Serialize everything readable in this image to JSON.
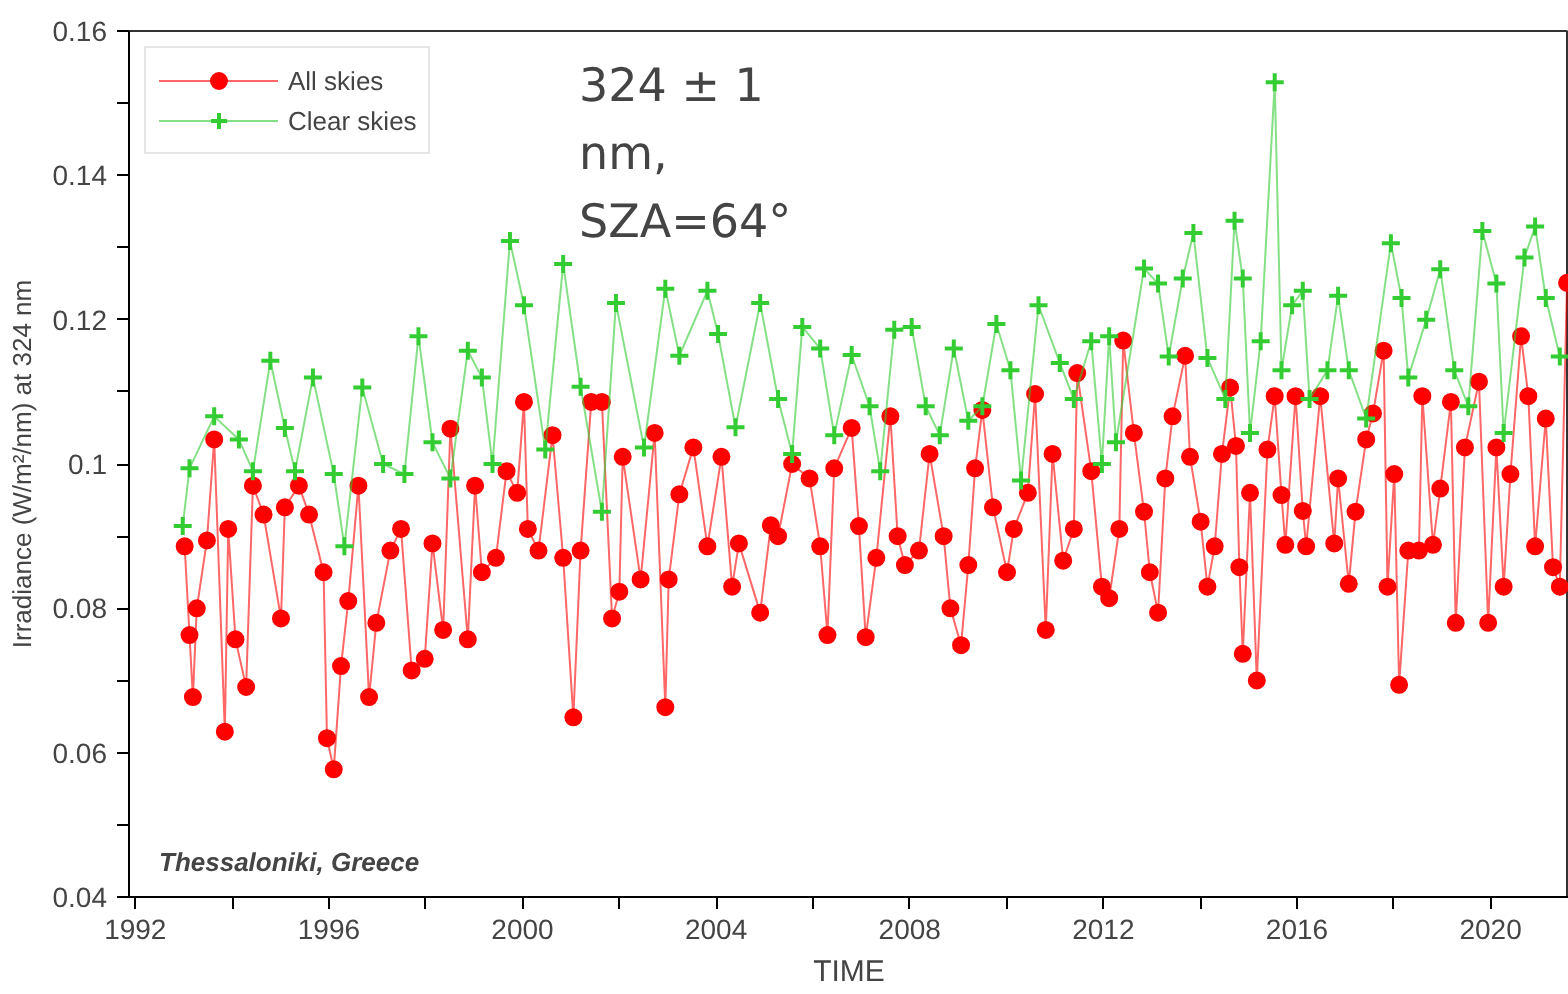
{
  "chart_data": {
    "type": "line",
    "xlabel": "TIME",
    "ylabel": "Irradiance (W/m²/nm) at 324 nm",
    "xlim": [
      1991.87,
      2021.62
    ],
    "ylim": [
      0.04,
      0.16
    ],
    "xticks": [
      1992,
      {
        "value": 1994,
        "label": null
      },
      1996,
      {
        "value": 1998,
        "label": null
      },
      2000,
      {
        "value": 2002,
        "label": null
      },
      2004,
      {
        "value": 2006,
        "label": null
      },
      2008,
      {
        "value": 2010,
        "label": null
      },
      2012,
      {
        "value": 2014,
        "label": null
      },
      2016,
      {
        "value": 2018,
        "label": null
      },
      2020
    ],
    "yticks": [
      0.04,
      {
        "value": 0.05,
        "label": null
      },
      0.06,
      {
        "value": 0.07,
        "label": null
      },
      0.08,
      {
        "value": 0.09,
        "label": null
      },
      0.1,
      {
        "value": 0.11,
        "label": null
      },
      0.12,
      {
        "value": 0.13,
        "label": null
      },
      0.14,
      {
        "value": 0.15,
        "label": null
      },
      0.16
    ],
    "grid": false,
    "legend": "top left",
    "line_style": "solid",
    "annotations": [
      "324 ± 1\nnm,\nSZA=64°",
      "Thessaloniki, Greece"
    ],
    "series": [
      {
        "name": "All skies",
        "color": "#ff0000",
        "marker": "circle",
        "x": [
          1993.02,
          1993.12,
          1993.19,
          1993.27,
          1993.48,
          1993.63,
          1993.85,
          1993.92,
          1994.07,
          1994.29,
          1994.43,
          1994.65,
          1995.01,
          1995.09,
          1995.38,
          1995.59,
          1995.89,
          1995.96,
          1996.1,
          1996.25,
          1996.4,
          1996.61,
          1996.83,
          1996.98,
          1997.27,
          1997.49,
          1997.71,
          1997.98,
          1998.14,
          1998.36,
          1998.51,
          1998.87,
          1999.02,
          1999.16,
          1999.45,
          1999.67,
          1999.89,
          2000.03,
          2000.11,
          2000.33,
          2000.62,
          2000.84,
          2001.05,
          2001.2,
          2001.42,
          2001.64,
          2001.85,
          2002.0,
          2002.07,
          2002.44,
          2002.73,
          2002.95,
          2003.02,
          2003.24,
          2003.53,
          2003.82,
          2004.11,
          2004.33,
          2004.47,
          2004.91,
          2005.13,
          2005.28,
          2005.57,
          2005.93,
          2006.15,
          2006.3,
          2006.44,
          2006.8,
          2006.95,
          2007.09,
          2007.31,
          2007.6,
          2007.75,
          2007.9,
          2008.19,
          2008.41,
          2008.7,
          2008.84,
          2009.06,
          2009.21,
          2009.35,
          2009.5,
          2009.72,
          2010.01,
          2010.15,
          2010.44,
          2010.59,
          2010.81,
          2010.95,
          2011.17,
          2011.39,
          2011.46,
          2011.75,
          2011.97,
          2012.12,
          2012.33,
          2012.41,
          2012.63,
          2012.84,
          2012.96,
          2013.13,
          2013.28,
          2013.43,
          2013.69,
          2013.79,
          2014.01,
          2014.15,
          2014.3,
          2014.45,
          2014.62,
          2014.74,
          2014.81,
          2014.88,
          2015.03,
          2015.17,
          2015.39,
          2015.54,
          2015.68,
          2015.76,
          2015.97,
          2016.12,
          2016.19,
          2016.48,
          2016.77,
          2016.85,
          2017.07,
          2017.21,
          2017.43,
          2017.57,
          2017.79,
          2017.87,
          2018.01,
          2018.11,
          2018.3,
          2018.52,
          2018.59,
          2018.81,
          2018.96,
          2019.18,
          2019.28,
          2019.47,
          2019.76,
          2019.95,
          2020.12,
          2020.27,
          2020.41,
          2020.63,
          2020.78,
          2020.92,
          2021.14,
          2021.29,
          2021.43,
          2021.58
        ],
        "values": [
          0.0886,
          0.0763,
          0.0677,
          0.08,
          0.0894,
          0.1034,
          0.0629,
          0.091,
          0.0757,
          0.0691,
          0.097,
          0.093,
          0.0786,
          0.094,
          0.097,
          0.093,
          0.085,
          0.062,
          0.0577,
          0.072,
          0.081,
          0.097,
          0.0677,
          0.078,
          0.088,
          0.091,
          0.0714,
          0.073,
          0.089,
          0.077,
          0.1049,
          0.0757,
          0.097,
          0.085,
          0.087,
          0.099,
          0.096,
          0.1086,
          0.091,
          0.088,
          0.104,
          0.087,
          0.0649,
          0.088,
          0.1086,
          0.1086,
          0.0786,
          0.0823,
          0.101,
          0.084,
          0.1043,
          0.0663,
          0.084,
          0.0958,
          0.1023,
          0.0886,
          0.101,
          0.083,
          0.089,
          0.0794,
          0.0915,
          0.09,
          0.1,
          0.098,
          0.0886,
          0.0763,
          0.0994,
          0.105,
          0.0914,
          0.076,
          0.087,
          0.1066,
          0.09,
          0.086,
          0.088,
          0.1014,
          0.09,
          0.08,
          0.0749,
          0.086,
          0.0994,
          0.1075,
          0.094,
          0.085,
          0.091,
          0.096,
          0.1097,
          0.077,
          0.1014,
          0.0866,
          0.091,
          0.1126,
          0.099,
          0.083,
          0.0814,
          0.091,
          0.1171,
          0.1043,
          0.0934,
          0.085,
          0.0794,
          0.098,
          0.1066,
          0.115,
          0.101,
          0.092,
          0.083,
          0.0886,
          0.1014,
          0.1106,
          0.1025,
          0.0857,
          0.0737,
          0.096,
          0.07,
          0.102,
          0.1094,
          0.0957,
          0.0888,
          0.1094,
          0.0935,
          0.0886,
          0.1094,
          0.089,
          0.098,
          0.0834,
          0.0934,
          0.1034,
          0.107,
          0.1157,
          0.083,
          0.0986,
          0.0694,
          0.088,
          0.088,
          0.1094,
          0.0888,
          0.0966,
          0.1086,
          0.078,
          0.1023,
          0.1114,
          0.078,
          0.1023,
          0.083,
          0.0986,
          0.1177,
          0.1094,
          0.0886,
          0.1063,
          0.0857,
          0.083,
          0.1251
        ]
      },
      {
        "name": "Clear skies",
        "color": "#33cc33",
        "marker": "cross",
        "x": [
          1992.98,
          1993.12,
          1993.63,
          1994.14,
          1994.43,
          1994.79,
          1995.09,
          1995.3,
          1995.67,
          1996.1,
          1996.32,
          1996.69,
          1997.12,
          1997.56,
          1997.85,
          1998.14,
          1998.51,
          1998.87,
          1999.16,
          1999.38,
          1999.74,
          2000.03,
          2000.47,
          2000.84,
          2001.2,
          2001.64,
          2001.93,
          2002.51,
          2002.95,
          2003.24,
          2003.82,
          2004.04,
          2004.4,
          2004.91,
          2005.28,
          2005.57,
          2005.78,
          2006.15,
          2006.44,
          2006.8,
          2007.17,
          2007.39,
          2007.68,
          2008.04,
          2008.33,
          2008.62,
          2008.91,
          2009.21,
          2009.5,
          2009.79,
          2010.08,
          2010.3,
          2010.66,
          2011.1,
          2011.39,
          2011.75,
          2011.97,
          2012.12,
          2012.26,
          2012.84,
          2013.13,
          2013.35,
          2013.64,
          2013.86,
          2014.15,
          2014.52,
          2014.71,
          2014.88,
          2015.03,
          2015.25,
          2015.54,
          2015.68,
          2015.9,
          2016.12,
          2016.26,
          2016.63,
          2016.85,
          2017.07,
          2017.43,
          2017.94,
          2018.16,
          2018.3,
          2018.67,
          2018.96,
          2019.25,
          2019.54,
          2019.83,
          2020.12,
          2020.27,
          2020.7,
          2020.92,
          2021.14,
          2021.43
        ],
        "values": [
          0.0914,
          0.0994,
          0.1066,
          0.1034,
          0.099,
          0.1143,
          0.105,
          0.099,
          0.112,
          0.0986,
          0.0886,
          0.1106,
          0.1,
          0.0986,
          0.1177,
          0.103,
          0.098,
          0.1157,
          0.112,
          0.1,
          0.1309,
          0.122,
          0.102,
          0.1277,
          0.1107,
          0.0934,
          0.1223,
          0.1023,
          0.1243,
          0.115,
          0.124,
          0.118,
          0.1051,
          0.1223,
          0.109,
          0.1014,
          0.119,
          0.116,
          0.104,
          0.1151,
          0.108,
          0.099,
          0.1186,
          0.119,
          0.108,
          0.104,
          0.116,
          0.106,
          0.108,
          0.1194,
          0.113,
          0.0977,
          0.122,
          0.114,
          0.109,
          0.117,
          0.1,
          0.1177,
          0.103,
          0.1271,
          0.125,
          0.1149,
          0.1257,
          0.132,
          0.1147,
          0.109,
          0.1337,
          0.1257,
          0.1043,
          0.117,
          0.1529,
          0.113,
          0.122,
          0.124,
          0.109,
          0.113,
          0.1233,
          0.113,
          0.1063,
          0.1306,
          0.123,
          0.112,
          0.12,
          0.127,
          0.113,
          0.108,
          0.1323,
          0.125,
          0.1043,
          0.1286,
          0.1329,
          0.123,
          0.1149
        ]
      }
    ]
  }
}
